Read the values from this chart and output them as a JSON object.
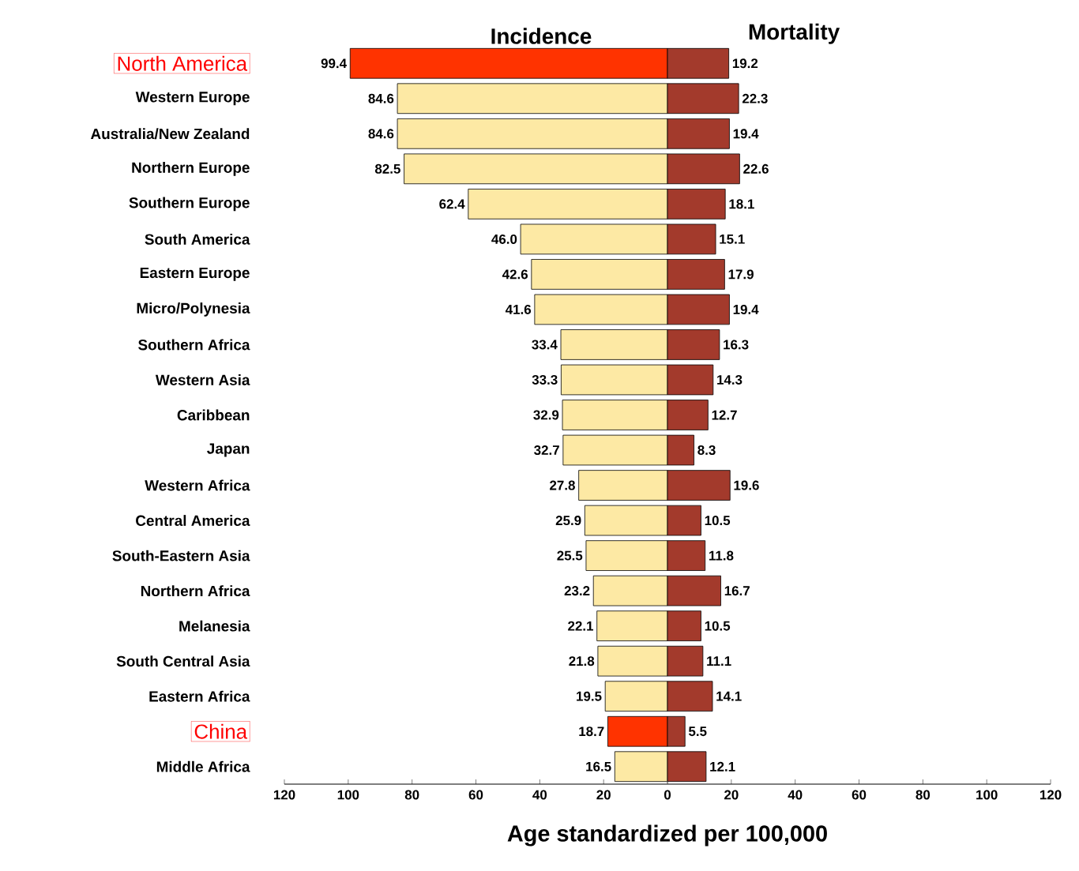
{
  "chart_data": [
    {
      "type": "bar",
      "orientation": "horizontal",
      "categories": [
        "North America",
        "Western Europe",
        "Australia/New Zealand",
        "Northern Europe",
        "Southern Europe",
        "South America",
        "Eastern Europe",
        "Micro/Polynesia",
        "Southern Africa",
        "Western Asia",
        "Caribbean",
        "Japan",
        "Western Africa",
        "Central America",
        "South-Eastern Asia",
        "Northern Africa",
        "Melanesia",
        "South Central Asia",
        "Eastern Africa",
        "China",
        "Middle Africa"
      ],
      "series": [
        {
          "name": "Incidence",
          "color": "#fde9a4",
          "colors": [
            "#ff3300",
            "#fde9a4",
            "#fde9a4",
            "#fde9a4",
            "#fde9a4",
            "#fde9a4",
            "#fde9a4",
            "#fde9a4",
            "#fde9a4",
            "#fde9a4",
            "#fde9a4",
            "#fde9a4",
            "#fde9a4",
            "#fde9a4",
            "#fde9a4",
            "#fde9a4",
            "#fde9a4",
            "#fde9a4",
            "#fde9a4",
            "#ff3300",
            "#fde9a4"
          ],
          "values": [
            99.4,
            84.6,
            84.6,
            82.5,
            62.4,
            46.0,
            42.6,
            41.6,
            33.4,
            33.3,
            32.9,
            32.7,
            27.8,
            25.9,
            25.5,
            23.2,
            22.1,
            21.8,
            19.5,
            18.7,
            16.5
          ],
          "value_labels": [
            "99.4",
            "84.6",
            "84.6",
            "82.5",
            "62.4",
            "46.0",
            "42.6",
            "41.6",
            "33.4",
            "33.3",
            "32.9",
            "32.7",
            "27.8",
            "25.9",
            "25.5",
            "23.2",
            "22.1",
            "21.8",
            "19.5",
            "18.7",
            "16.5"
          ]
        }
      ],
      "xlabel": "Age standardized per 100,000",
      "xlim": [
        120,
        0
      ],
      "xticks": [
        120,
        100,
        80,
        60,
        40,
        20,
        0
      ]
    },
    {
      "type": "bar",
      "orientation": "horizontal",
      "categories": [
        null,
        null,
        null,
        null,
        null,
        null,
        null,
        null,
        null,
        null,
        null,
        null,
        null,
        null,
        null,
        null,
        null,
        null,
        null,
        null,
        null
      ],
      "series": [
        {
          "name": "Mortality",
          "color": "#a33a2c",
          "values": [
            19.2,
            22.3,
            19.4,
            22.6,
            18.1,
            15.1,
            17.9,
            19.4,
            16.3,
            14.3,
            12.7,
            8.3,
            19.6,
            10.5,
            11.8,
            16.7,
            10.5,
            11.1,
            14.1,
            5.5,
            12.1
          ]
        }
      ],
      "data_labels": true,
      "xlim": [
        0,
        120
      ],
      "xticks": [
        {
          "value": 0,
          "label": null
        },
        20,
        40,
        60,
        80,
        100,
        120
      ],
      "tick_labels": "x"
    }
  ]
}
